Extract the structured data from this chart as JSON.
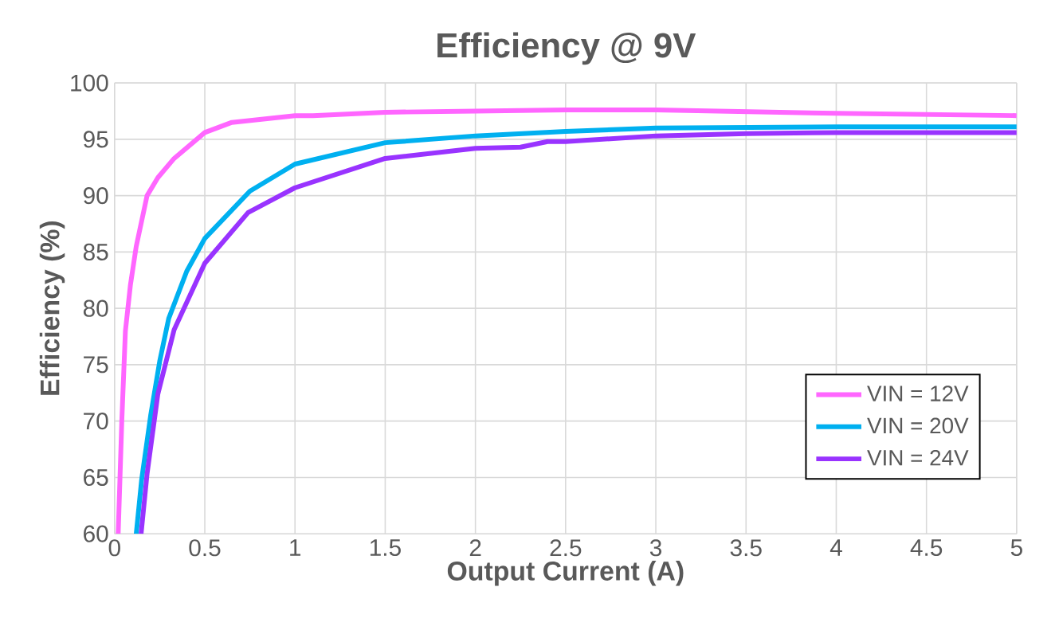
{
  "chart_data": {
    "type": "line",
    "title": "Efficiency @ 9V",
    "xlabel": "Output Current (A)",
    "ylabel": "Efficiency (%)",
    "xlim": [
      0,
      5
    ],
    "ylim": [
      60,
      100
    ],
    "xticks": [
      0,
      0.5,
      1,
      1.5,
      2,
      2.5,
      3,
      3.5,
      4,
      4.5,
      5
    ],
    "yticks": [
      60,
      65,
      70,
      75,
      80,
      85,
      90,
      95,
      100
    ],
    "grid": true,
    "legend": "bottom right",
    "marker": "none",
    "line_style": "solid",
    "series": [
      {
        "name": "VIN = 12V",
        "color": "#ff66ff",
        "x": [
          0.02,
          0.04,
          0.06,
          0.088,
          0.12,
          0.18,
          0.24,
          0.33,
          0.5,
          0.65,
          1.0,
          1.1,
          1.5,
          2.0,
          2.5,
          3.0,
          4.0,
          5.0
        ],
        "values": [
          60,
          70,
          78,
          82.1,
          85.5,
          90,
          91.6,
          93.3,
          95.6,
          96.5,
          97.1,
          97.1,
          97.4,
          97.5,
          97.6,
          97.6,
          97.3,
          97.1
        ]
      },
      {
        "name": "VIN = 20V",
        "color": "#00b0f0",
        "x": [
          0.12,
          0.15,
          0.2,
          0.25,
          0.3,
          0.4,
          0.5,
          0.75,
          1.0,
          1.5,
          2.0,
          2.5,
          3.0,
          4.0,
          5.0
        ],
        "values": [
          60,
          64.8,
          70.5,
          75.3,
          79.1,
          83.3,
          86.2,
          90.4,
          92.8,
          94.7,
          95.3,
          95.7,
          96.0,
          96.1,
          96.1
        ]
      },
      {
        "name": "VIN = 24V",
        "color": "#9933ff",
        "x": [
          0.147,
          0.18,
          0.24,
          0.33,
          0.5,
          0.74,
          1.0,
          1.5,
          2.0,
          2.25,
          2.4,
          2.5,
          3.0,
          3.5,
          4.0,
          5.0
        ],
        "values": [
          60,
          65.3,
          72.4,
          78.1,
          84.0,
          88.5,
          90.7,
          93.3,
          94.2,
          94.3,
          94.8,
          94.8,
          95.3,
          95.5,
          95.6,
          95.6
        ]
      }
    ]
  }
}
